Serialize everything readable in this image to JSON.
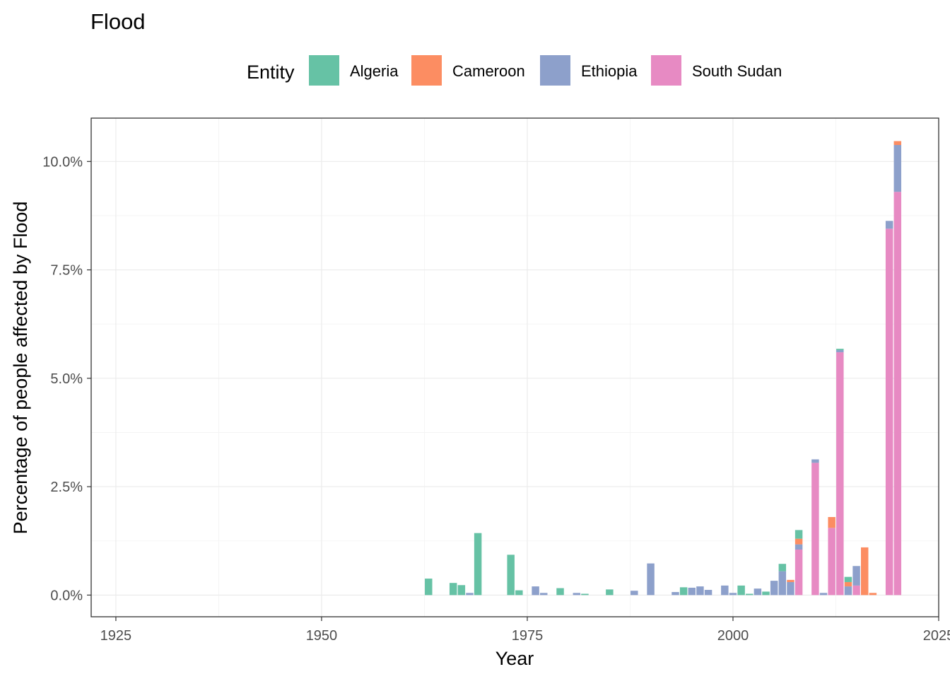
{
  "chart_data": {
    "type": "bar",
    "stacked": true,
    "title": "Flood",
    "xlabel": "Year",
    "ylabel": "Percentage of people affected by Flood",
    "legend": {
      "title": "Entity",
      "position": "top",
      "entries": [
        "Algeria",
        "Cameroon",
        "Ethiopia",
        "South Sudan"
      ]
    },
    "xlim": [
      1922,
      2025
    ],
    "ylim": [
      -0.5,
      11.0
    ],
    "x_ticks": [
      1925,
      1950,
      1975,
      2000,
      2025
    ],
    "x_tick_labels": [
      "1925",
      "1950",
      "1975",
      "2000",
      "2025"
    ],
    "y_ticks": [
      0,
      2.5,
      5.0,
      7.5,
      10.0
    ],
    "y_tick_labels": [
      "0.0%",
      "2.5%",
      "5.0%",
      "7.5%",
      "10.0%"
    ],
    "grid": true,
    "colors": {
      "Algeria": "#66c2a5",
      "Cameroon": "#fc8d62",
      "Ethiopia": "#8da0cb",
      "South Sudan": "#e78ac3"
    },
    "series": [
      {
        "name": "South Sudan",
        "points": [
          [
            2008,
            1.05
          ],
          [
            2010,
            3.05
          ],
          [
            2012,
            1.55
          ],
          [
            2013,
            5.6
          ],
          [
            2015,
            0.22
          ],
          [
            2019,
            8.45
          ],
          [
            2020,
            9.3
          ]
        ]
      },
      {
        "name": "Ethiopia",
        "points": [
          [
            1968,
            0.05
          ],
          [
            1976,
            0.2
          ],
          [
            1977,
            0.05
          ],
          [
            1981,
            0.05
          ],
          [
            1988,
            0.1
          ],
          [
            1990,
            0.73
          ],
          [
            1993,
            0.07
          ],
          [
            1995,
            0.17
          ],
          [
            1996,
            0.2
          ],
          [
            1997,
            0.12
          ],
          [
            1999,
            0.22
          ],
          [
            2000,
            0.05
          ],
          [
            2003,
            0.15
          ],
          [
            2005,
            0.33
          ],
          [
            2006,
            0.55
          ],
          [
            2007,
            0.3
          ],
          [
            2008,
            0.12
          ],
          [
            2010,
            0.08
          ],
          [
            2011,
            0.05
          ],
          [
            2013,
            0.05
          ],
          [
            2014,
            0.2
          ],
          [
            2015,
            0.45
          ],
          [
            2019,
            0.18
          ],
          [
            2020,
            1.08
          ]
        ]
      },
      {
        "name": "Cameroon",
        "points": [
          [
            2007,
            0.05
          ],
          [
            2008,
            0.13
          ],
          [
            2012,
            0.25
          ],
          [
            2014,
            0.1
          ],
          [
            2016,
            1.1
          ],
          [
            2017,
            0.05
          ],
          [
            2020,
            0.09
          ]
        ]
      },
      {
        "name": "Algeria",
        "points": [
          [
            1963,
            0.38
          ],
          [
            1966,
            0.28
          ],
          [
            1967,
            0.23
          ],
          [
            1969,
            1.43
          ],
          [
            1973,
            0.93
          ],
          [
            1974,
            0.11
          ],
          [
            1979,
            0.16
          ],
          [
            1982,
            0.03
          ],
          [
            1985,
            0.13
          ],
          [
            1994,
            0.18
          ],
          [
            2001,
            0.22
          ],
          [
            2002,
            0.03
          ],
          [
            2004,
            0.08
          ],
          [
            2006,
            0.17
          ],
          [
            2008,
            0.2
          ],
          [
            2013,
            0.03
          ],
          [
            2014,
            0.12
          ]
        ]
      }
    ]
  }
}
